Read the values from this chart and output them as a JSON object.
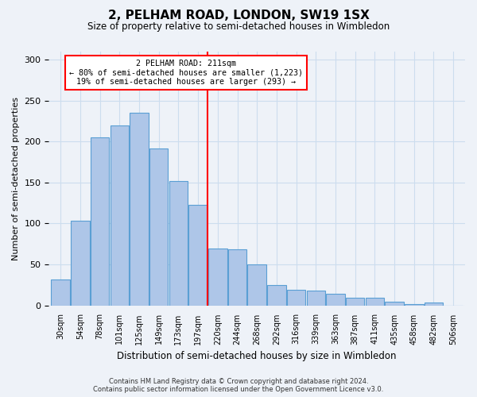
{
  "title": "2, PELHAM ROAD, LONDON, SW19 1SX",
  "subtitle": "Size of property relative to semi-detached houses in Wimbledon",
  "xlabel": "Distribution of semi-detached houses by size in Wimbledon",
  "ylabel": "Number of semi-detached properties",
  "footer_line1": "Contains HM Land Registry data © Crown copyright and database right 2024.",
  "footer_line2": "Contains public sector information licensed under the Open Government Licence v3.0.",
  "bar_labels": [
    "30sqm",
    "54sqm",
    "78sqm",
    "101sqm",
    "125sqm",
    "149sqm",
    "173sqm",
    "197sqm",
    "220sqm",
    "244sqm",
    "268sqm",
    "292sqm",
    "316sqm",
    "339sqm",
    "363sqm",
    "387sqm",
    "411sqm",
    "435sqm",
    "458sqm",
    "482sqm",
    "506sqm"
  ],
  "bar_values": [
    32,
    103,
    205,
    220,
    235,
    192,
    152,
    123,
    69,
    68,
    50,
    25,
    19,
    18,
    14,
    9,
    9,
    4,
    2,
    3,
    0
  ],
  "bar_color": "#aec6e8",
  "bar_edge_color": "#5a9fd4",
  "vline_x_index": 7.5,
  "vline_color": "red",
  "annotation_title": "2 PELHAM ROAD: 211sqm",
  "annotation_line2": "← 80% of semi-detached houses are smaller (1,223)",
  "annotation_line3": "19% of semi-detached houses are larger (293) →",
  "annotation_box_color": "white",
  "annotation_box_edge_color": "red",
  "ylim": [
    0,
    310
  ],
  "yticks": [
    0,
    50,
    100,
    150,
    200,
    250,
    300
  ],
  "grid_color": "#ccddee",
  "background_color": "#eef2f8"
}
